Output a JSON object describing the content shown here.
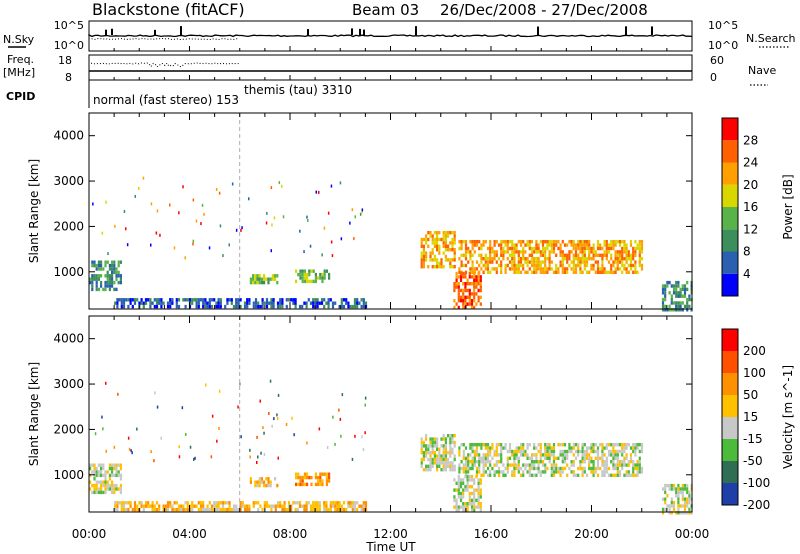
{
  "header": {
    "station": "Blackstone (fitACF)",
    "beam_label": "Beam 03",
    "date_range": "26/Dec/2008 - 27/Dec/2008"
  },
  "top_panels": {
    "nsky_label": "N.Sky",
    "nsky_ticks": [
      "10^5",
      "10^0"
    ],
    "nsearch_ticks": [
      "10^5",
      "10^0"
    ],
    "nsearch_label": "N.Search",
    "freq_label": "Freq.",
    "freq_unit": "[MHz]",
    "freq_ticks": [
      "18",
      "8"
    ],
    "nave_ticks": [
      "60",
      "0"
    ],
    "nave_label": "Nave",
    "cpid_label": "CPID",
    "cpid_modes": [
      {
        "label": "normal (fast stereo) 153",
        "start_hour": 0
      },
      {
        "label": "themis (tau) 3310",
        "start_hour": 6
      }
    ]
  },
  "x_axis": {
    "title": "Time UT",
    "ticks": [
      "00:00",
      "04:00",
      "08:00",
      "12:00",
      "16:00",
      "20:00",
      "00:00"
    ]
  },
  "colors": {
    "power": [
      "#0000ff",
      "#2b5fb0",
      "#3c8f5a",
      "#5ab24b",
      "#d8d800",
      "#ffa000",
      "#ff6000",
      "#ff0000"
    ],
    "velocity": [
      "#1f3fa8",
      "#2f6e55",
      "#4cbb3b",
      "#c8c8c8",
      "#ffc000",
      "#ff9000",
      "#ff5000",
      "#ff0000"
    ]
  },
  "chart_data": [
    {
      "type": "heatmap",
      "panel": "power",
      "ylabel": "Slant Range [km]",
      "yticks": [
        "4000",
        "3000",
        "2000",
        "1000"
      ],
      "ylim": [
        180,
        4500
      ],
      "xlabel": "Time UT",
      "colorbar_label": "Power [dB]",
      "colorbar_ticks": [
        "28",
        "24",
        "20",
        "16",
        "12",
        "8",
        "4"
      ],
      "regions": [
        {
          "t0": 0.0,
          "t1": 1.3,
          "r0": 600,
          "r1": 1250,
          "level": 2
        },
        {
          "t0": 1.0,
          "t1": 11.0,
          "r0": 200,
          "r1": 420,
          "level": 1
        },
        {
          "t0": 6.4,
          "t1": 7.5,
          "r0": 780,
          "r1": 950,
          "level": 3
        },
        {
          "t0": 8.2,
          "t1": 9.6,
          "r0": 800,
          "r1": 1050,
          "level": 3
        },
        {
          "t0": 13.2,
          "t1": 14.6,
          "r0": 1100,
          "r1": 1900,
          "level": 5
        },
        {
          "t0": 14.7,
          "t1": 22.0,
          "r0": 1000,
          "r1": 1700,
          "level": 5
        },
        {
          "t0": 14.5,
          "t1": 15.6,
          "r0": 200,
          "r1": 1000,
          "level": 6
        },
        {
          "t0": 22.8,
          "t1": 24.0,
          "r0": 200,
          "r1": 800,
          "level": 2
        }
      ]
    },
    {
      "type": "heatmap",
      "panel": "velocity",
      "ylabel": "Slant Range [km]",
      "yticks": [
        "4000",
        "3000",
        "2000",
        "1000"
      ],
      "ylim": [
        180,
        4500
      ],
      "xlabel": "Time UT",
      "colorbar_label": "Velocity [m s^-1]",
      "colorbar_ticks": [
        "200",
        "100",
        "50",
        "15",
        "-15",
        "-50",
        "-100",
        "-200"
      ],
      "regions": [
        {
          "t0": 0.0,
          "t1": 1.3,
          "r0": 600,
          "r1": 1250,
          "level": 3
        },
        {
          "t0": 1.0,
          "t1": 11.0,
          "r0": 200,
          "r1": 420,
          "level": 4
        },
        {
          "t0": 6.4,
          "t1": 7.5,
          "r0": 780,
          "r1": 950,
          "level": 4
        },
        {
          "t0": 8.2,
          "t1": 9.6,
          "r0": 800,
          "r1": 1050,
          "level": 5
        },
        {
          "t0": 13.2,
          "t1": 14.6,
          "r0": 1100,
          "r1": 1900,
          "level": 3
        },
        {
          "t0": 14.7,
          "t1": 22.0,
          "r0": 1000,
          "r1": 1700,
          "level": 3
        },
        {
          "t0": 14.5,
          "t1": 15.6,
          "r0": 200,
          "r1": 1000,
          "level": 3
        },
        {
          "t0": 22.8,
          "t1": 24.0,
          "r0": 200,
          "r1": 800,
          "level": 3
        }
      ]
    }
  ]
}
